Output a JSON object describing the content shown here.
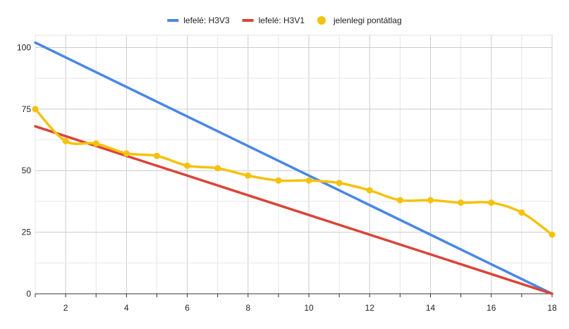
{
  "chart_data": {
    "type": "line",
    "title": "",
    "xlabel": "",
    "ylabel": "",
    "xlim": [
      1,
      18
    ],
    "ylim": [
      0,
      105
    ],
    "grid": true,
    "legend_position": "top",
    "x_ticks": [
      2,
      4,
      6,
      8,
      10,
      12,
      14,
      16,
      18
    ],
    "y_ticks": [
      0,
      25,
      50,
      75,
      100
    ],
    "series": [
      {
        "name": "lefelé: H3V3",
        "color": "#4a86e8",
        "style": "line",
        "x": [
          1,
          18
        ],
        "y": [
          102,
          0
        ]
      },
      {
        "name": "lefelé: H3V1",
        "color": "#db4437",
        "style": "line",
        "x": [
          1,
          18
        ],
        "y": [
          68,
          0
        ]
      },
      {
        "name": "jelenlegi pontátlag",
        "color": "#f4c20d",
        "style": "smooth-line-markers",
        "x": [
          1,
          2,
          3,
          4,
          5,
          6,
          7,
          8,
          9,
          10,
          11,
          12,
          13,
          14,
          15,
          16,
          17,
          18
        ],
        "y": [
          75,
          62,
          61,
          57,
          56,
          52,
          51,
          48,
          46,
          46,
          45,
          42,
          38,
          38,
          37,
          37,
          33,
          24
        ]
      }
    ]
  }
}
